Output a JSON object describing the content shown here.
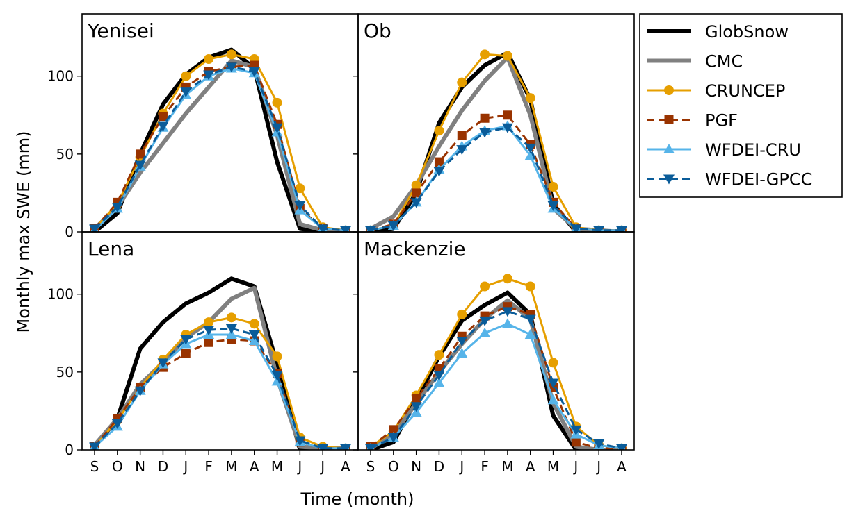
{
  "chart_data": {
    "type": "line",
    "ylabel": "Monthly max SWE (mm)",
    "xlabel": "Time (month)",
    "months": [
      "S",
      "O",
      "N",
      "D",
      "J",
      "F",
      "M",
      "A",
      "M",
      "J",
      "J",
      "A"
    ],
    "ylim": [
      0,
      140
    ],
    "yticks": [
      0,
      50,
      100
    ],
    "grid": false,
    "legend_position": "outside-right",
    "series_styles": [
      {
        "name": "GlobSnow",
        "color": "#000000",
        "marker": "none",
        "dashed": false
      },
      {
        "name": "CMC",
        "color": "#808080",
        "marker": "none",
        "dashed": false
      },
      {
        "name": "CRUNCEP",
        "color": "#E69F00",
        "marker": "circle",
        "dashed": false
      },
      {
        "name": "PGF",
        "color": "#993300",
        "marker": "square",
        "dashed": true
      },
      {
        "name": "WFDEI-CRU",
        "color": "#56B4E9",
        "marker": "triangle-up",
        "dashed": false
      },
      {
        "name": "WFDEI-GPCC",
        "color": "#0A5C99",
        "marker": "triangle-down",
        "dashed": true
      }
    ],
    "panels": [
      {
        "title": "Yenisei",
        "series": [
          {
            "name": "GlobSnow",
            "values": [
              0,
              12,
              50,
              82,
              101,
              112,
              117,
              105,
              45,
              2,
              0,
              0
            ]
          },
          {
            "name": "CMC",
            "values": [
              2,
              16,
              38,
              57,
              76,
              93,
              110,
              106,
              62,
              5,
              1,
              0
            ]
          },
          {
            "name": "CRUNCEP",
            "values": [
              2,
              18,
              48,
              76,
              100,
              111,
              114,
              111,
              83,
              28,
              3,
              1
            ]
          },
          {
            "name": "PGF",
            "values": [
              2,
              19,
              50,
              74,
              93,
              103,
              106,
              107,
              69,
              15,
              2,
              1
            ]
          },
          {
            "name": "WFDEI-CRU",
            "values": [
              1,
              15,
              42,
              67,
              88,
              100,
              105,
              102,
              64,
              14,
              2,
              1
            ]
          },
          {
            "name": "WFDEI-GPCC",
            "values": [
              2,
              16,
              43,
              68,
              90,
              101,
              106,
              103,
              67,
              17,
              2,
              1
            ]
          }
        ]
      },
      {
        "title": "Ob",
        "series": [
          {
            "name": "GlobSnow",
            "values": [
              0,
              2,
              25,
              70,
              93,
              107,
              115,
              85,
              18,
              0,
              0,
              0
            ]
          },
          {
            "name": "CMC",
            "values": [
              2,
              10,
              30,
              55,
              78,
              97,
              112,
              75,
              15,
              2,
              1,
              0
            ]
          },
          {
            "name": "CRUNCEP",
            "values": [
              1,
              4,
              30,
              65,
              96,
              114,
              113,
              86,
              29,
              3,
              1,
              1
            ]
          },
          {
            "name": "PGF",
            "values": [
              1,
              5,
              25,
              45,
              62,
              73,
              75,
              56,
              19,
              2,
              1,
              1
            ]
          },
          {
            "name": "WFDEI-CRU",
            "values": [
              1,
              4,
              19,
              40,
              55,
              65,
              68,
              49,
              15,
              2,
              1,
              1
            ]
          },
          {
            "name": "WFDEI-GPCC",
            "values": [
              1,
              4,
              19,
              39,
              53,
              64,
              67,
              54,
              17,
              2,
              1,
              1
            ]
          }
        ]
      },
      {
        "title": "Lena",
        "series": [
          {
            "name": "GlobSnow",
            "values": [
              2,
              20,
              65,
              82,
              94,
              101,
              110,
              105,
              55,
              0,
              0,
              0
            ]
          },
          {
            "name": "CMC",
            "values": [
              3,
              20,
              42,
              56,
              72,
              82,
              97,
              104,
              46,
              2,
              1,
              1
            ]
          },
          {
            "name": "CRUNCEP",
            "values": [
              2,
              19,
              40,
              58,
              74,
              82,
              85,
              81,
              60,
              8,
              2,
              1
            ]
          },
          {
            "name": "PGF",
            "values": [
              2,
              20,
              40,
              53,
              62,
              69,
              71,
              70,
              49,
              5,
              1,
              1
            ]
          },
          {
            "name": "WFDEI-CRU",
            "values": [
              2,
              15,
              38,
              55,
              68,
              74,
              74,
              70,
              44,
              5,
              1,
              1
            ]
          },
          {
            "name": "WFDEI-GPCC",
            "values": [
              2,
              17,
              38,
              56,
              71,
              77,
              78,
              74,
              48,
              6,
              1,
              1
            ]
          }
        ]
      },
      {
        "title": "Mackenzie",
        "series": [
          {
            "name": "GlobSnow",
            "values": [
              0,
              5,
              32,
              60,
              83,
              93,
              101,
              87,
              22,
              0,
              0,
              0
            ]
          },
          {
            "name": "CMC",
            "values": [
              1,
              10,
              30,
              50,
              68,
              84,
              96,
              84,
              30,
              2,
              0,
              0
            ]
          },
          {
            "name": "CRUNCEP",
            "values": [
              2,
              12,
              35,
              61,
              87,
              105,
              110,
              105,
              56,
              15,
              3,
              1
            ]
          },
          {
            "name": "PGF",
            "values": [
              2,
              13,
              33,
              52,
              73,
              86,
              92,
              87,
              40,
              5,
              1,
              1
            ]
          },
          {
            "name": "WFDEI-CRU",
            "values": [
              1,
              8,
              24,
              43,
              62,
              75,
              81,
              74,
              32,
              10,
              3,
              1
            ]
          },
          {
            "name": "WFDEI-GPCC",
            "values": [
              1,
              8,
              28,
              48,
              70,
              83,
              89,
              84,
              43,
              13,
              4,
              1
            ]
          }
        ]
      }
    ]
  }
}
